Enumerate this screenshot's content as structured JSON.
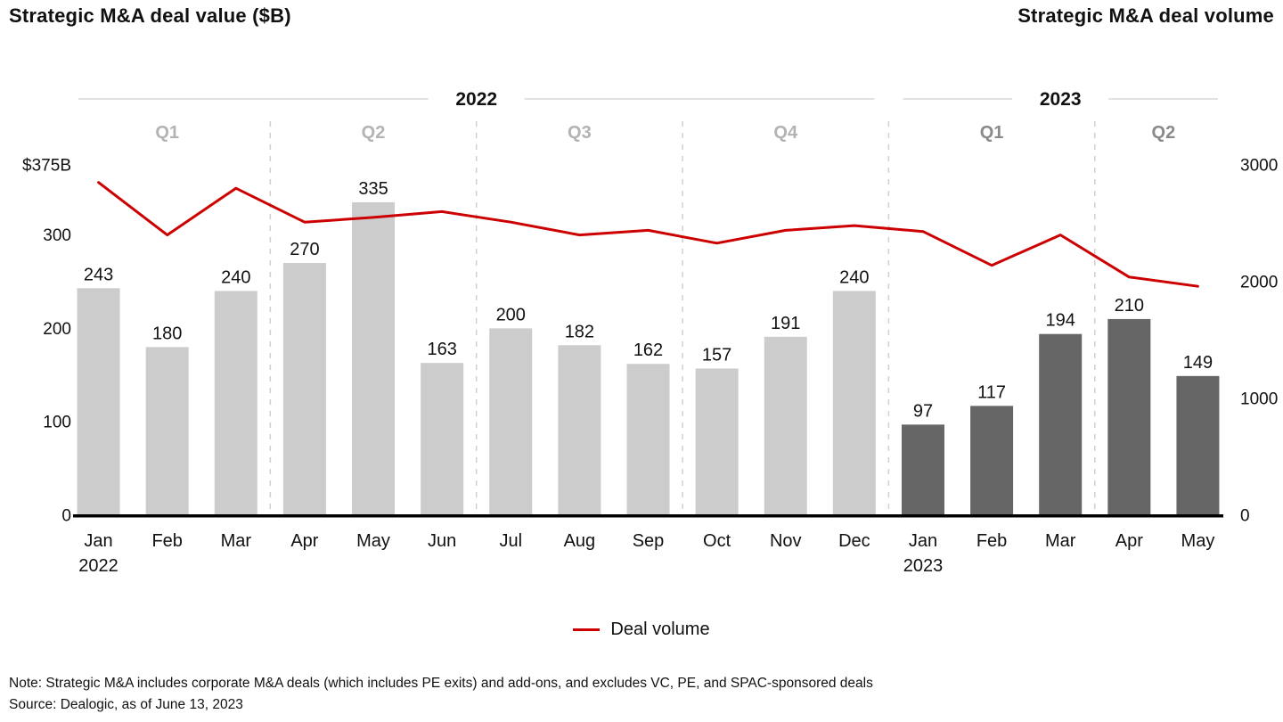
{
  "header": {
    "left_title": "Strategic M&A deal value ($B)",
    "right_title": "Strategic M&A deal volume"
  },
  "legend": {
    "label": "Deal volume",
    "color": "#cc0000"
  },
  "footnote": {
    "note": "Note: Strategic M&A includes corporate M&A deals (which includes PE exits) and add-ons, and excludes VC, PE, and SPAC-sponsored deals",
    "source": "Source: Dealogic, as of June 13, 2023"
  },
  "chart_data": {
    "type": "bar+line",
    "x": [
      "Jan 2022",
      "Feb 2022",
      "Mar 2022",
      "Apr 2022",
      "May 2022",
      "Jun 2022",
      "Jul 2022",
      "Aug 2022",
      "Sep 2022",
      "Oct 2022",
      "Nov 2022",
      "Dec 2022",
      "Jan 2023",
      "Feb 2023",
      "Mar 2023",
      "Apr 2023",
      "May 2023"
    ],
    "x_tick_lines": [
      [
        "Jan",
        "2022"
      ],
      [
        "Feb"
      ],
      [
        "Mar"
      ],
      [
        "Apr"
      ],
      [
        "May"
      ],
      [
        "Jun"
      ],
      [
        "Jul"
      ],
      [
        "Aug"
      ],
      [
        "Sep"
      ],
      [
        "Oct"
      ],
      [
        "Nov"
      ],
      [
        "Dec"
      ],
      [
        "Jan",
        "2023"
      ],
      [
        "Feb"
      ],
      [
        "Mar"
      ],
      [
        "Apr"
      ],
      [
        "May"
      ]
    ],
    "series": [
      {
        "name": "Strategic M&A deal value ($B)",
        "type": "bar",
        "axis": "left",
        "values": [
          243,
          180,
          240,
          270,
          335,
          163,
          200,
          182,
          162,
          157,
          191,
          240,
          97,
          117,
          194,
          210,
          149
        ],
        "bar_colors": [
          "#cccccc",
          "#cccccc",
          "#cccccc",
          "#cccccc",
          "#cccccc",
          "#cccccc",
          "#cccccc",
          "#cccccc",
          "#cccccc",
          "#cccccc",
          "#cccccc",
          "#cccccc",
          "#666666",
          "#666666",
          "#666666",
          "#666666",
          "#666666"
        ]
      },
      {
        "name": "Deal volume",
        "type": "line",
        "axis": "right",
        "color": "#cc0000",
        "values": [
          2850,
          2400,
          2800,
          2510,
          2550,
          2600,
          2510,
          2400,
          2440,
          2330,
          2440,
          2480,
          2430,
          2140,
          2400,
          2040,
          1960
        ]
      }
    ],
    "left_axis": {
      "title": "Strategic M&A deal value ($B)",
      "max": 375,
      "ticks": [
        {
          "label": "$375B",
          "value": 375
        },
        {
          "label": "300",
          "value": 300
        },
        {
          "label": "200",
          "value": 200
        },
        {
          "label": "100",
          "value": 100
        },
        {
          "label": "0",
          "value": 0
        }
      ]
    },
    "right_axis": {
      "title": "Strategic M&A deal volume",
      "max": 3000,
      "ticks": [
        {
          "label": "3000",
          "value": 3000
        },
        {
          "label": "2000",
          "value": 2000
        },
        {
          "label": "1000",
          "value": 1000
        },
        {
          "label": "0",
          "value": 0
        }
      ]
    },
    "year_groups": [
      {
        "label": "2022",
        "start": 0,
        "end": 11
      },
      {
        "label": "2023",
        "start": 12,
        "end": 16
      }
    ],
    "quarter_groups": [
      {
        "label": "Q1",
        "start": 0,
        "end": 2,
        "color": "#b3b3b3"
      },
      {
        "label": "Q2",
        "start": 3,
        "end": 5,
        "color": "#b3b3b3"
      },
      {
        "label": "Q3",
        "start": 6,
        "end": 8,
        "color": "#b3b3b3"
      },
      {
        "label": "Q4",
        "start": 9,
        "end": 11,
        "color": "#b3b3b3"
      },
      {
        "label": "Q1",
        "start": 12,
        "end": 14,
        "color": "#8a8a8a"
      },
      {
        "label": "Q2",
        "start": 15,
        "end": 16,
        "color": "#8a8a8a"
      }
    ],
    "grid": "off",
    "legend_position": "bottom-center"
  }
}
